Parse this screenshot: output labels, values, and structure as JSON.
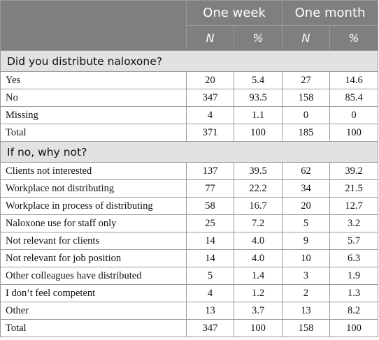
{
  "header": {
    "group1": "One week",
    "group2": "One month",
    "n_label": "N",
    "pct_label": "%"
  },
  "sections": [
    {
      "title": "Did you distribute naloxone?",
      "rows": [
        {
          "label": "Yes",
          "week_n": "20",
          "week_pct": "5.4",
          "month_n": "27",
          "month_pct": "14.6"
        },
        {
          "label": "No",
          "week_n": "347",
          "week_pct": "93.5",
          "month_n": "158",
          "month_pct": "85.4"
        },
        {
          "label": "Missing",
          "week_n": "4",
          "week_pct": "1.1",
          "month_n": "0",
          "month_pct": "0"
        },
        {
          "label": "Total",
          "week_n": "371",
          "week_pct": "100",
          "month_n": "185",
          "month_pct": "100"
        }
      ]
    },
    {
      "title": "If no, why not?",
      "rows": [
        {
          "label": "Clients not interested",
          "week_n": "137",
          "week_pct": "39.5",
          "month_n": "62",
          "month_pct": "39.2"
        },
        {
          "label": "Workplace not distributing",
          "week_n": "77",
          "week_pct": "22.2",
          "month_n": "34",
          "month_pct": "21.5"
        },
        {
          "label": "Workplace in process of distributing",
          "week_n": "58",
          "week_pct": "16.7",
          "month_n": "20",
          "month_pct": "12.7"
        },
        {
          "label": "Naloxone use for staff only",
          "week_n": "25",
          "week_pct": "7.2",
          "month_n": "5",
          "month_pct": "3.2"
        },
        {
          "label": "Not relevant for clients",
          "week_n": "14",
          "week_pct": "4.0",
          "month_n": "9",
          "month_pct": "5.7"
        },
        {
          "label": "Not relevant for job position",
          "week_n": "14",
          "week_pct": "4.0",
          "month_n": "10",
          "month_pct": "6.3"
        },
        {
          "label": "Other colleagues have distributed",
          "week_n": "5",
          "week_pct": "1.4",
          "month_n": "3",
          "month_pct": "1.9"
        },
        {
          "label": "I don’t feel competent",
          "week_n": "4",
          "week_pct": "1.2",
          "month_n": "2",
          "month_pct": "1.3"
        },
        {
          "label": "Other",
          "week_n": "13",
          "week_pct": "3.7",
          "month_n": "13",
          "month_pct": "8.2"
        },
        {
          "label": "Total",
          "week_n": "347",
          "week_pct": "100",
          "month_n": "158",
          "month_pct": "100"
        }
      ]
    }
  ]
}
